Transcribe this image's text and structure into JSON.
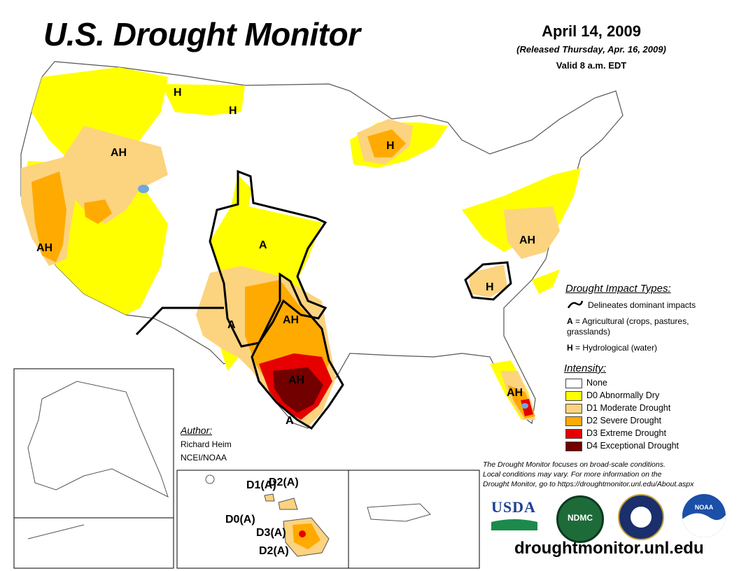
{
  "header": {
    "title": "U.S. Drought Monitor",
    "date": "April 14, 2009",
    "released": "(Released Thursday, Apr. 16, 2009)",
    "valid": "Valid 8 a.m. EDT"
  },
  "map_labels": {
    "nw_h1": "H",
    "nw_h2": "H",
    "great_basin_ah": "AH",
    "california_ah": "AH",
    "plains_a": "A",
    "nm_a": "A",
    "tx_ah_north": "AH",
    "tx_ah_south": "AH",
    "tx_a_south": "A",
    "wisconsin_h": "H",
    "midatlantic_ah": "AH",
    "carolina_h": "H",
    "florida_ah": "AH"
  },
  "hawaii_labels": {
    "d1_a": "D1(A)",
    "d2_a_top": "D2(A)",
    "d0_a": "D0(A)",
    "d3_a": "D3(A)",
    "d2_a_bottom": "D2(A)"
  },
  "impact_legend": {
    "heading": "Drought Impact Types:",
    "line_desc": "Delineates dominant impacts",
    "a_key": "A",
    "a_desc": "= Agricultural (crops, pastures, grasslands)",
    "h_key": "H",
    "h_desc": "= Hydrological (water)"
  },
  "intensity_legend": {
    "heading": "Intensity:",
    "items": [
      {
        "label": "None",
        "color": "#ffffff"
      },
      {
        "label": "D0 Abnormally Dry",
        "color": "#ffff00"
      },
      {
        "label": "D1 Moderate Drought",
        "color": "#fcd37f"
      },
      {
        "label": "D2 Severe Drought",
        "color": "#ffaa00"
      },
      {
        "label": "D3 Extreme Drought",
        "color": "#e60000"
      },
      {
        "label": "D4 Exceptional Drought",
        "color": "#730000"
      }
    ]
  },
  "author": {
    "heading": "Author:",
    "name": "Richard Heim",
    "org": "NCEI/NOAA"
  },
  "footer": {
    "note_line1": "The Drought Monitor focuses on broad-scale conditions.",
    "note_line2": "Local conditions may vary. For more information on the",
    "note_line3": "Drought Monitor, go to https://droughtmonitor.unl.edu/About.aspx",
    "url": "droughtmonitor.unl.edu"
  },
  "logos": {
    "usda": "USDA",
    "ndmc": "NDMC",
    "noaa": "NOAA"
  }
}
